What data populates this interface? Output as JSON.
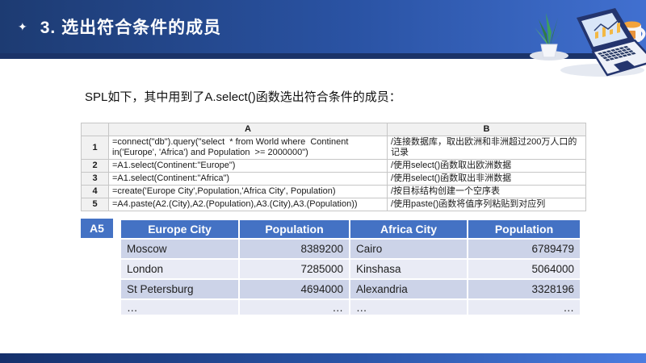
{
  "header": {
    "title": "3. 选出符合条件的成员",
    "sparkle_icon": "✦"
  },
  "intro_text": "SPL如下，其中用到了A.select()函数选出符合条件的成员：",
  "code_grid": {
    "corner_label": "",
    "columns": [
      "A",
      "B"
    ],
    "rows": [
      {
        "num": "1",
        "code": "=connect(\"db\").query(\"select  * from World where  Continent in('Europe', 'Africa') and Population  >= 2000000\")",
        "comment": "/连接数据库，取出欧洲和非洲超过200万人口的记录"
      },
      {
        "num": "2",
        "code": "=A1.select(Continent:\"Europe\")",
        "comment": "/使用select()函数取出欧洲数据"
      },
      {
        "num": "3",
        "code": "=A1.select(Continent:\"Africa\")",
        "comment": "/使用select()函数取出非洲数据"
      },
      {
        "num": "4",
        "code": "=create('Europe City',Population,'Africa City', Population)",
        "comment": "/按目标结构创建一个空序表"
      },
      {
        "num": "5",
        "code": "=A4.paste(A2.(City),A2.(Population),A3.(City),A3.(Population))",
        "comment": "/使用paste()函数将值序列粘贴到对应列"
      }
    ]
  },
  "result_table": {
    "label": "A5",
    "headers": [
      "Europe City",
      "Population",
      "Africa City",
      "Population"
    ],
    "rows": [
      [
        "Moscow",
        "8389200",
        "Cairo",
        "6789479"
      ],
      [
        "London",
        "7285000",
        "Kinshasa",
        "5064000"
      ],
      [
        "St Petersburg",
        "4694000",
        "Alexandria",
        "3328196"
      ],
      [
        "…",
        "…",
        "…",
        "…"
      ]
    ]
  },
  "colors": {
    "header_gradient_start": "#1d3b72",
    "header_gradient_end": "#4170d0",
    "header_underline": "#1b3368",
    "table_header_blue": "#4472c4",
    "row_band_dark": "#ccd3e8",
    "row_band_light": "#e9ebf5",
    "grid_border": "#c6c6c6"
  }
}
